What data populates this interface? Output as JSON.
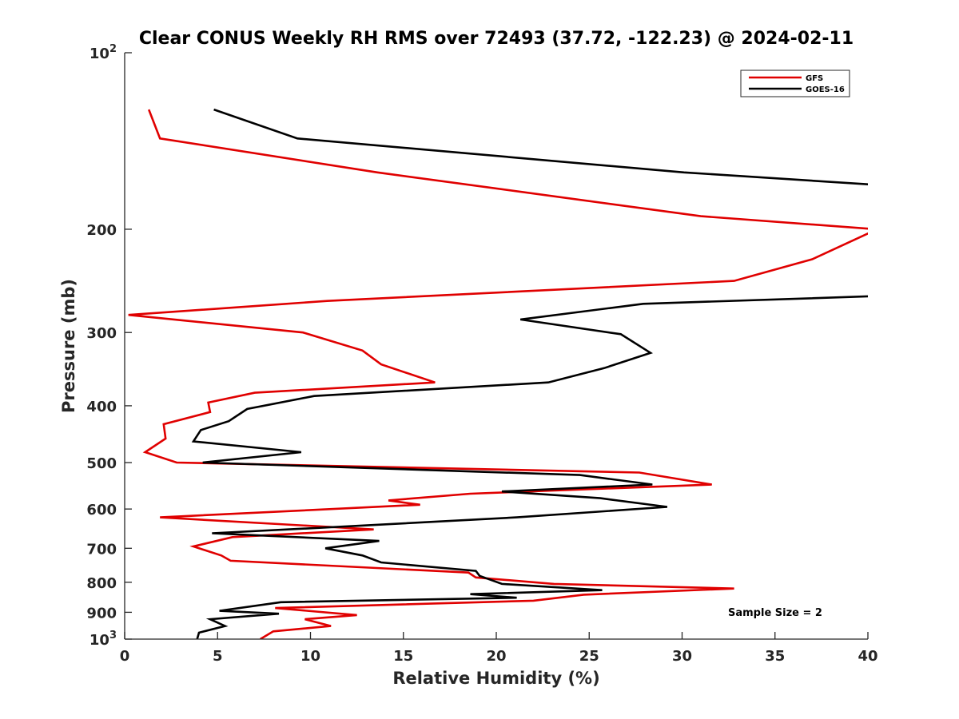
{
  "chart_data": {
    "type": "line",
    "title": "Clear CONUS Weekly RH RMS over 72493 (37.72, -122.23) @ 2024-02-11",
    "xlabel": "Relative Humidity (%)",
    "ylabel": "Pressure (mb)",
    "xlim": [
      0,
      40
    ],
    "ylim": [
      1000,
      100
    ],
    "y_scale": "log",
    "y_reversed": true,
    "grid": false,
    "legend_position": "top-right",
    "x_ticks": [
      "0",
      "5",
      "10",
      "15",
      "20",
      "25",
      "30",
      "35",
      "40"
    ],
    "y_ticks": [
      {
        "value": 100,
        "base": "10",
        "exp": "2"
      },
      {
        "value": 200,
        "label": "200"
      },
      {
        "value": 300,
        "label": "300"
      },
      {
        "value": 400,
        "label": "400"
      },
      {
        "value": 500,
        "label": "500"
      },
      {
        "value": 600,
        "label": "600"
      },
      {
        "value": 700,
        "label": "700"
      },
      {
        "value": 800,
        "label": "800"
      },
      {
        "value": 900,
        "label": "900"
      },
      {
        "value": 1000,
        "base": "10",
        "exp": "3"
      }
    ],
    "series": [
      {
        "name": "GFS",
        "color": "#e00000",
        "points": [
          [
            1.3,
            125
          ],
          [
            1.9,
            140
          ],
          [
            13.6,
            160
          ],
          [
            31.0,
            190
          ],
          [
            40.5,
            200
          ],
          [
            37.0,
            225
          ],
          [
            32.8,
            245
          ],
          [
            10.9,
            265
          ],
          [
            0.2,
            280
          ],
          [
            9.6,
            300
          ],
          [
            12.8,
            322
          ],
          [
            13.8,
            340
          ],
          [
            16.7,
            365
          ],
          [
            7.0,
            380
          ],
          [
            4.5,
            395
          ],
          [
            4.6,
            410
          ],
          [
            2.1,
            430
          ],
          [
            2.2,
            455
          ],
          [
            1.1,
            480
          ],
          [
            2.8,
            500
          ],
          [
            27.7,
            520
          ],
          [
            31.6,
            545
          ],
          [
            18.6,
            565
          ],
          [
            14.2,
            580
          ],
          [
            15.9,
            590
          ],
          [
            1.9,
            620
          ],
          [
            13.4,
            650
          ],
          [
            5.8,
            670
          ],
          [
            3.7,
            695
          ],
          [
            5.2,
            720
          ],
          [
            5.7,
            735
          ],
          [
            18.5,
            770
          ],
          [
            18.9,
            785
          ],
          [
            23.1,
            805
          ],
          [
            32.8,
            820
          ],
          [
            24.7,
            840
          ],
          [
            22.0,
            860
          ],
          [
            8.1,
            885
          ],
          [
            12.5,
            910
          ],
          [
            9.7,
            925
          ],
          [
            11.1,
            950
          ],
          [
            8.0,
            970
          ],
          [
            7.3,
            1000
          ]
        ]
      },
      {
        "name": "GOES-16",
        "color": "#000000",
        "points": [
          [
            4.8,
            125
          ],
          [
            9.3,
            140
          ],
          [
            30.1,
            160
          ],
          [
            40.5,
            168
          ],
          [
            40.5,
            260
          ],
          [
            27.9,
            268
          ],
          [
            21.3,
            285
          ],
          [
            26.7,
            302
          ],
          [
            28.3,
            325
          ],
          [
            25.8,
            345
          ],
          [
            22.8,
            365
          ],
          [
            10.2,
            385
          ],
          [
            6.6,
            405
          ],
          [
            5.6,
            425
          ],
          [
            4.1,
            440
          ],
          [
            3.7,
            460
          ],
          [
            9.5,
            480
          ],
          [
            4.2,
            500
          ],
          [
            24.5,
            525
          ],
          [
            28.4,
            545
          ],
          [
            20.3,
            560
          ],
          [
            25.6,
            575
          ],
          [
            29.2,
            595
          ],
          [
            21.1,
            620
          ],
          [
            10.9,
            645
          ],
          [
            4.7,
            660
          ],
          [
            13.7,
            680
          ],
          [
            10.8,
            700
          ],
          [
            12.8,
            720
          ],
          [
            13.8,
            740
          ],
          [
            18.9,
            765
          ],
          [
            19.1,
            780
          ],
          [
            20.3,
            805
          ],
          [
            25.7,
            825
          ],
          [
            18.6,
            838
          ],
          [
            21.1,
            850
          ],
          [
            8.4,
            865
          ],
          [
            5.1,
            895
          ],
          [
            8.3,
            905
          ],
          [
            4.6,
            925
          ],
          [
            5.4,
            950
          ],
          [
            4.0,
            975
          ],
          [
            3.9,
            1000
          ]
        ]
      }
    ],
    "annotation": "Sample Size = 2"
  }
}
